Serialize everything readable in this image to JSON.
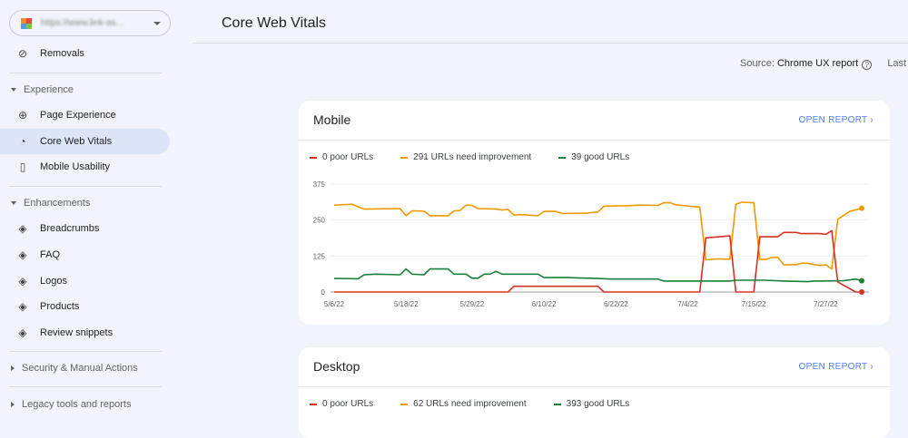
{
  "sidebar": {
    "property_url": "https://www.link-as...",
    "removals": "Removals",
    "experience": "Experience",
    "page_experience": "Page Experience",
    "core_web_vitals": "Core Web Vitals",
    "mobile_usability": "Mobile Usability",
    "enhancements": "Enhancements",
    "breadcrumbs": "Breadcrumbs",
    "faq": "FAQ",
    "logos": "Logos",
    "products": "Products",
    "review_snippets": "Review snippets",
    "security": "Security & Manual Actions",
    "legacy": "Legacy tools and reports"
  },
  "header": {
    "title": "Core Web Vitals",
    "source_label": "Source:",
    "source_value": "Chrome UX report",
    "last_updated": "Last up"
  },
  "colors": {
    "poor": "#d93025",
    "needs_improvement": "#f29900",
    "good": "#188038",
    "accent": "#4a80f0"
  },
  "mobile": {
    "title": "Mobile",
    "open_report": "OPEN REPORT",
    "legend": {
      "poor": "0 poor URLs",
      "ni": "291 URLs need improvement",
      "good": "39 good URLs"
    }
  },
  "desktop": {
    "title": "Desktop",
    "open_report": "OPEN REPORT",
    "legend": {
      "poor": "0 poor URLs",
      "ni": "62 URLs need improvement",
      "good": "393 good URLs"
    }
  },
  "chart_data": {
    "type": "line",
    "ylim": [
      0,
      375
    ],
    "yticks": [
      "0",
      "125",
      "250",
      "375"
    ],
    "xticks": [
      "5/6/22",
      "5/18/22",
      "5/29/22",
      "6/10/22",
      "6/22/22",
      "7/4/22",
      "7/15/22",
      "7/27/22"
    ],
    "xrange": [
      "2022-05-06",
      "2022-08-02"
    ],
    "grid": true,
    "series": [
      {
        "name": "URLs need improvement",
        "color": "#f29900",
        "points": [
          [
            "05-06",
            302
          ],
          [
            "05-09",
            305
          ],
          [
            "05-11",
            288
          ],
          [
            "05-17",
            290
          ],
          [
            "05-18",
            265
          ],
          [
            "05-19",
            282
          ],
          [
            "05-21",
            281
          ],
          [
            "05-22",
            265
          ],
          [
            "05-25",
            265
          ],
          [
            "05-26",
            282
          ],
          [
            "05-27",
            283
          ],
          [
            "05-28",
            302
          ],
          [
            "05-29",
            301
          ],
          [
            "05-30",
            290
          ],
          [
            "06-02",
            288
          ],
          [
            "06-03",
            285
          ],
          [
            "06-04",
            287
          ],
          [
            "06-05",
            267
          ],
          [
            "06-06",
            269
          ],
          [
            "06-09",
            265
          ],
          [
            "06-10",
            280
          ],
          [
            "06-12",
            280
          ],
          [
            "06-13",
            273
          ],
          [
            "06-17",
            274
          ],
          [
            "06-19",
            278
          ],
          [
            "06-20",
            298
          ],
          [
            "06-24",
            300
          ],
          [
            "06-26",
            302
          ],
          [
            "06-29",
            301
          ],
          [
            "06-30",
            310
          ],
          [
            "07-01",
            310
          ],
          [
            "07-02",
            303
          ],
          [
            "07-06",
            295
          ],
          [
            "07-07",
            112
          ],
          [
            "07-09",
            115
          ],
          [
            "07-11",
            114
          ],
          [
            "07-12",
            305
          ],
          [
            "07-13",
            312
          ],
          [
            "07-15",
            310
          ],
          [
            "07-16",
            113
          ],
          [
            "07-17",
            113
          ],
          [
            "07-18",
            120
          ],
          [
            "07-19",
            120
          ],
          [
            "07-20",
            95
          ],
          [
            "07-22",
            95
          ],
          [
            "07-23",
            100
          ],
          [
            "07-24",
            100
          ],
          [
            "07-26",
            92
          ],
          [
            "07-27",
            95
          ],
          [
            "07-28",
            80
          ],
          [
            "07-29",
            252
          ],
          [
            "07-31",
            280
          ],
          [
            "08-02",
            291
          ]
        ]
      },
      {
        "name": "poor URLs",
        "color": "#d93025",
        "points": [
          [
            "05-06",
            0
          ],
          [
            "06-04",
            0
          ],
          [
            "06-05",
            20
          ],
          [
            "06-19",
            20
          ],
          [
            "06-20",
            0
          ],
          [
            "07-06",
            0
          ],
          [
            "07-07",
            188
          ],
          [
            "07-11",
            195
          ],
          [
            "07-12",
            0
          ],
          [
            "07-15",
            0
          ],
          [
            "07-16",
            192
          ],
          [
            "07-19",
            192
          ],
          [
            "07-20",
            207
          ],
          [
            "07-22",
            207
          ],
          [
            "07-23",
            203
          ],
          [
            "07-26",
            203
          ],
          [
            "07-27",
            200
          ],
          [
            "07-28",
            213
          ],
          [
            "07-29",
            35
          ],
          [
            "08-01",
            0
          ],
          [
            "08-02",
            0
          ]
        ]
      },
      {
        "name": "good URLs",
        "color": "#188038",
        "points": [
          [
            "05-06",
            47
          ],
          [
            "05-10",
            46
          ],
          [
            "05-11",
            60
          ],
          [
            "05-13",
            62
          ],
          [
            "05-17",
            60
          ],
          [
            "05-18",
            80
          ],
          [
            "05-19",
            62
          ],
          [
            "05-21",
            60
          ],
          [
            "05-22",
            80
          ],
          [
            "05-25",
            80
          ],
          [
            "05-26",
            62
          ],
          [
            "05-28",
            62
          ],
          [
            "05-29",
            48
          ],
          [
            "05-30",
            48
          ],
          [
            "05-31",
            62
          ],
          [
            "06-01",
            62
          ],
          [
            "06-02",
            72
          ],
          [
            "06-03",
            62
          ],
          [
            "06-09",
            62
          ],
          [
            "06-10",
            50
          ],
          [
            "06-14",
            50
          ],
          [
            "06-19",
            47
          ],
          [
            "06-21",
            45
          ],
          [
            "06-29",
            45
          ],
          [
            "06-30",
            38
          ],
          [
            "07-11",
            38
          ],
          [
            "07-12",
            41
          ],
          [
            "07-17",
            41
          ],
          [
            "07-20",
            38
          ],
          [
            "07-24",
            36
          ],
          [
            "07-25",
            38
          ],
          [
            "07-30",
            39
          ],
          [
            "08-01",
            45
          ],
          [
            "08-02",
            39
          ]
        ]
      }
    ]
  }
}
